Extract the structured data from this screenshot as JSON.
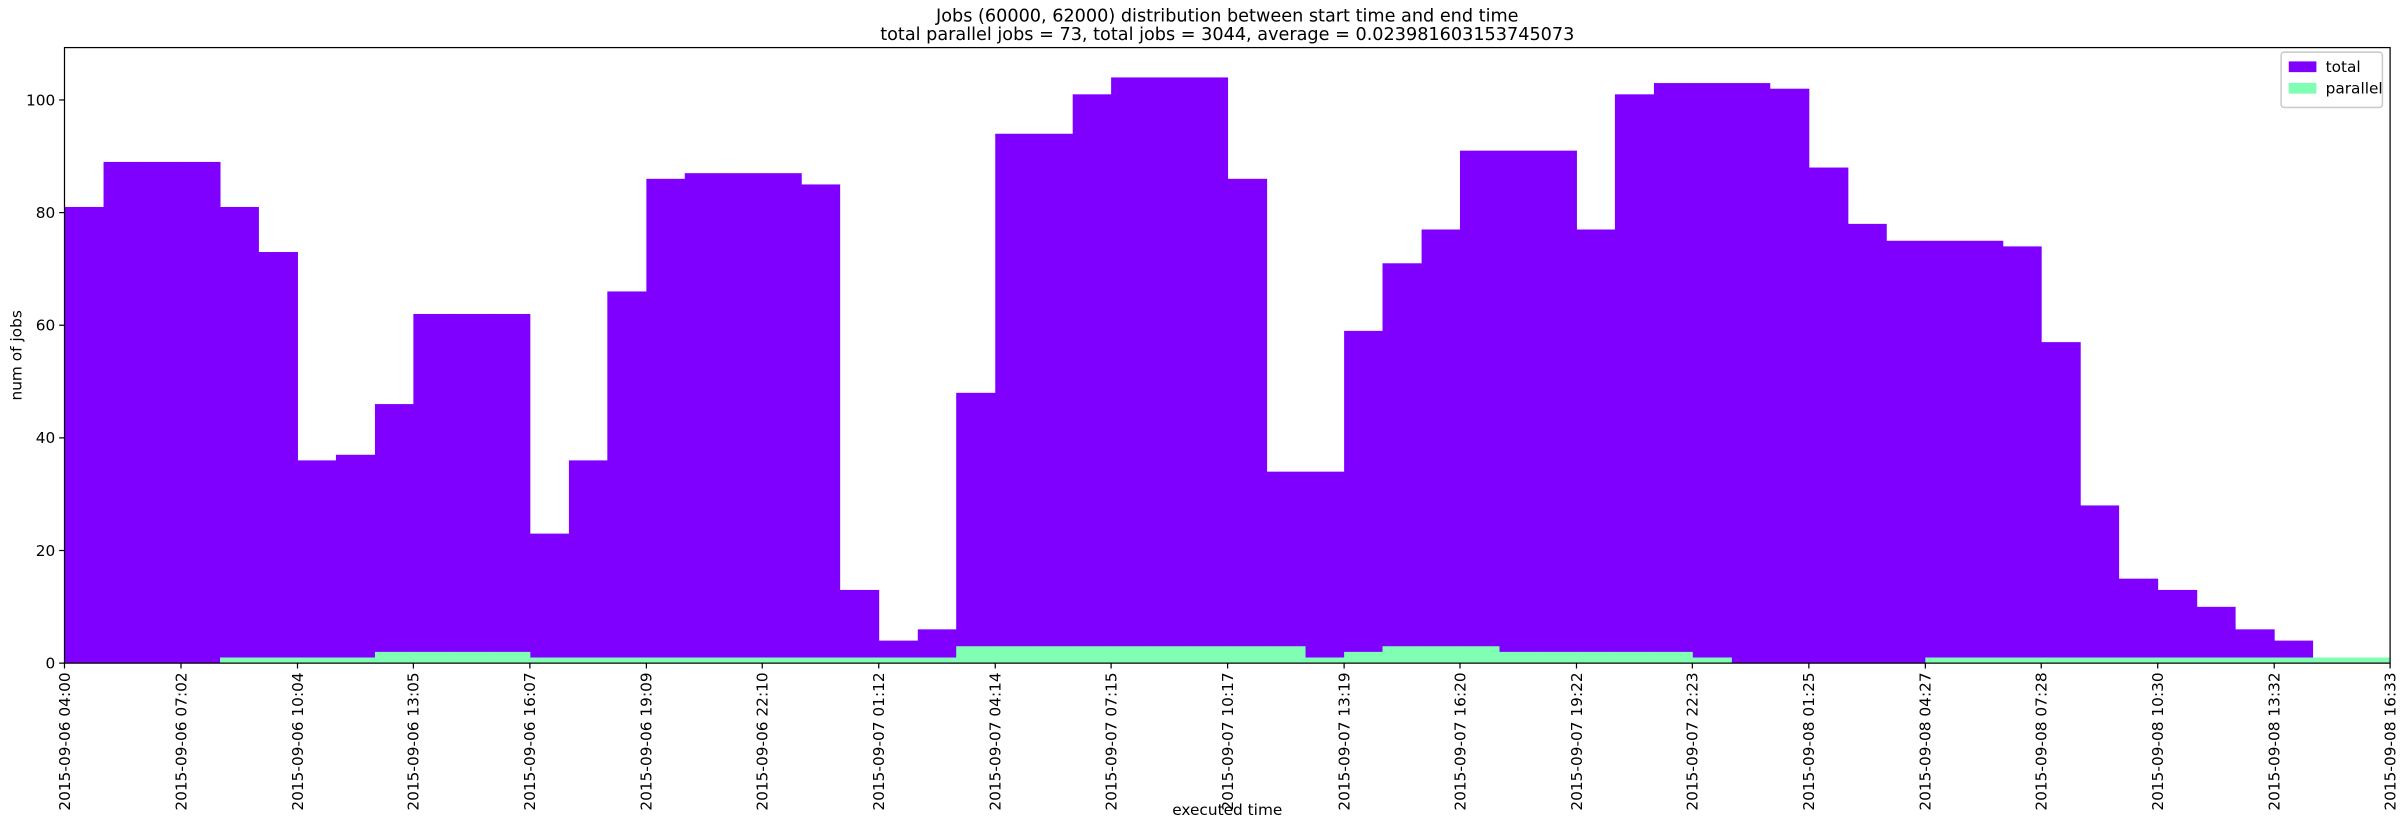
{
  "chart_data": {
    "type": "histogram",
    "title": "Jobs (60000, 62000) distribution between start time and end time",
    "subtitle": "total parallel jobs = 73, total jobs = 3044, average = 0.023981603153745073",
    "x_label": "executed time",
    "y_label": "num of jobs",
    "bins": [
      "2015-09-06 04:00",
      "2015-09-06 05:01",
      "2015-09-06 06:01",
      "2015-09-06 07:02",
      "2015-09-06 08:03",
      "2015-09-06 09:03",
      "2015-09-06 10:04",
      "2015-09-06 11:04",
      "2015-09-06 12:05",
      "2015-09-06 13:05",
      "2015-09-06 14:06",
      "2015-09-06 15:06",
      "2015-09-06 16:07",
      "2015-09-06 17:08",
      "2015-09-06 18:08",
      "2015-09-06 19:09",
      "2015-09-06 20:09",
      "2015-09-06 21:10",
      "2015-09-06 22:10",
      "2015-09-06 23:11",
      "2015-09-07 00:11",
      "2015-09-07 01:12",
      "2015-09-07 02:13",
      "2015-09-07 03:13",
      "2015-09-07 04:14",
      "2015-09-07 05:14",
      "2015-09-07 06:15",
      "2015-09-07 07:15",
      "2015-09-07 08:16",
      "2015-09-07 09:16",
      "2015-09-07 10:17",
      "2015-09-07 11:18",
      "2015-09-07 12:18",
      "2015-09-07 13:19",
      "2015-09-07 14:19",
      "2015-09-07 15:20",
      "2015-09-07 16:20",
      "2015-09-07 17:21",
      "2015-09-07 18:21",
      "2015-09-07 19:22",
      "2015-09-07 20:22",
      "2015-09-07 21:23",
      "2015-09-07 22:23",
      "2015-09-07 23:24",
      "2015-09-08 00:24",
      "2015-09-08 01:25",
      "2015-09-08 02:26",
      "2015-09-08 03:26",
      "2015-09-08 04:27",
      "2015-09-08 05:27",
      "2015-09-08 06:28",
      "2015-09-08 07:28",
      "2015-09-08 08:29",
      "2015-09-08 09:29",
      "2015-09-08 10:30",
      "2015-09-08 11:31",
      "2015-09-08 12:31",
      "2015-09-08 13:32",
      "2015-09-08 14:32",
      "2015-09-08 15:33",
      "2015-09-08 16:33"
    ],
    "series": [
      {
        "name": "total",
        "color": "#8000ff",
        "values": [
          81,
          89,
          89,
          89,
          81,
          73,
          36,
          37,
          46,
          62,
          62,
          62,
          23,
          36,
          66,
          86,
          87,
          87,
          87,
          85,
          13,
          4,
          6,
          48,
          94,
          94,
          101,
          104,
          104,
          104,
          86,
          34,
          34,
          59,
          71,
          77,
          91,
          91,
          91,
          77,
          101,
          103,
          103,
          103,
          102,
          88,
          78,
          75,
          75,
          75,
          74,
          57,
          28,
          15,
          13,
          10,
          6,
          4,
          0,
          0
        ]
      },
      {
        "name": "parallel",
        "color": "#80ffb4",
        "values": [
          0,
          0,
          0,
          0,
          1,
          1,
          1,
          1,
          2,
          2,
          2,
          2,
          1,
          1,
          1,
          1,
          1,
          1,
          1,
          1,
          1,
          1,
          1,
          3,
          3,
          3,
          3,
          3,
          3,
          3,
          3,
          3,
          1,
          2,
          3,
          3,
          3,
          2,
          2,
          2,
          2,
          2,
          1,
          0,
          0,
          0,
          0,
          0,
          1,
          1,
          1,
          1,
          1,
          1,
          1,
          1,
          1,
          1,
          1,
          1
        ]
      }
    ],
    "xlim": [
      "2015-09-06 04:00",
      "2015-09-08 16:33"
    ],
    "xticks": [
      "2015-09-06 04:00",
      "2015-09-06 07:02",
      "2015-09-06 10:04",
      "2015-09-06 13:05",
      "2015-09-06 16:07",
      "2015-09-06 19:09",
      "2015-09-06 22:10",
      "2015-09-07 01:12",
      "2015-09-07 04:14",
      "2015-09-07 07:15",
      "2015-09-07 10:17",
      "2015-09-07 13:19",
      "2015-09-07 16:20",
      "2015-09-07 19:22",
      "2015-09-07 22:23",
      "2015-09-08 01:25",
      "2015-09-08 04:27",
      "2015-09-08 07:28",
      "2015-09-08 10:30",
      "2015-09-08 13:32",
      "2015-09-08 16:33"
    ],
    "ylim": [
      0,
      109.3
    ],
    "yticks": [
      0,
      20,
      40,
      60,
      80,
      100
    ],
    "legend": "upper right"
  }
}
